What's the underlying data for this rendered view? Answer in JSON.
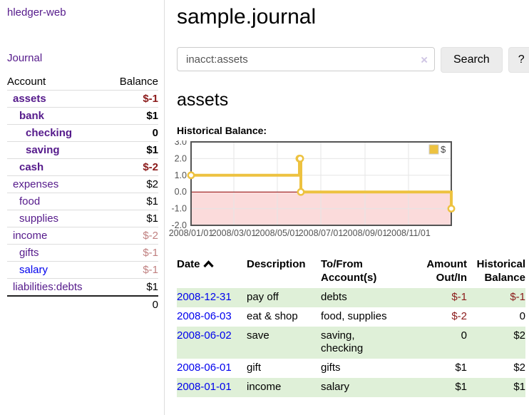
{
  "sidebar": {
    "app_title": "hledger-web",
    "nav": {
      "journal_label": "Journal"
    },
    "accounts_table": {
      "headers": {
        "account": "Account",
        "balance": "Balance"
      },
      "rows": [
        {
          "name": "assets",
          "balance": "$-1",
          "indent": 1,
          "bold": true,
          "balance_style": "negative-strong",
          "link_style": "purple"
        },
        {
          "name": "bank",
          "balance": "$1",
          "indent": 2,
          "bold": true,
          "balance_style": "default",
          "link_style": "purple"
        },
        {
          "name": "checking",
          "balance": "0",
          "indent": 3,
          "bold": true,
          "balance_style": "default",
          "link_style": "purple"
        },
        {
          "name": "saving",
          "balance": "$1",
          "indent": 3,
          "bold": true,
          "balance_style": "default",
          "link_style": "purple"
        },
        {
          "name": "cash",
          "balance": "$-2",
          "indent": 2,
          "bold": true,
          "balance_style": "negative-strong",
          "link_style": "purple"
        },
        {
          "name": "expenses",
          "balance": "$2",
          "indent": 1,
          "bold": false,
          "balance_style": "default",
          "link_style": "purple"
        },
        {
          "name": "food",
          "balance": "$1",
          "indent": 2,
          "bold": false,
          "balance_style": "default",
          "link_style": "purple"
        },
        {
          "name": "supplies",
          "balance": "$1",
          "indent": 2,
          "bold": false,
          "balance_style": "default",
          "link_style": "purple"
        },
        {
          "name": "income",
          "balance": "$-2",
          "indent": 1,
          "bold": false,
          "balance_style": "negative-muted",
          "link_style": "purple"
        },
        {
          "name": "gifts",
          "balance": "$-1",
          "indent": 2,
          "bold": false,
          "balance_style": "negative-muted",
          "link_style": "purple"
        },
        {
          "name": "salary",
          "balance": "$-1",
          "indent": 2,
          "bold": false,
          "balance_style": "negative-muted",
          "link_style": "blue"
        },
        {
          "name": "liabilities:debts",
          "balance": "$1",
          "indent": 1,
          "bold": false,
          "balance_style": "default",
          "link_style": "purple"
        }
      ],
      "total": "0"
    }
  },
  "main": {
    "title": "sample.journal",
    "search": {
      "value": "inacct:assets",
      "clear_icon": "×",
      "button_label": "Search",
      "help_label": "?"
    },
    "account_heading": "assets",
    "chart_label": "Historical Balance:"
  },
  "chart_data": {
    "type": "line",
    "title": "Historical Balance",
    "step": true,
    "series": [
      {
        "name": "$",
        "color": "#EDC240",
        "points": [
          {
            "date": "2008-01-01",
            "day": 0,
            "value": 1
          },
          {
            "date": "2008-06-01",
            "day": 152,
            "value": 2
          },
          {
            "date": "2008-06-02",
            "day": 153,
            "value": 2
          },
          {
            "date": "2008-06-03",
            "day": 154,
            "value": 0
          },
          {
            "date": "2008-12-31",
            "day": 365,
            "value": -1
          }
        ]
      }
    ],
    "x_ticks": [
      {
        "label": "2008/01/01",
        "day": 0
      },
      {
        "label": "2008/03/01",
        "day": 60
      },
      {
        "label": "2008/05/01",
        "day": 121
      },
      {
        "label": "2008/07/01",
        "day": 182
      },
      {
        "label": "2008/09/01",
        "day": 244
      },
      {
        "label": "2008/11/01",
        "day": 305
      }
    ],
    "y_ticks": [
      "3.0",
      "2.0",
      "1.0",
      "0.0",
      "-1.0",
      "-2.0"
    ],
    "ylim": [
      -2,
      3
    ],
    "xlim_days": [
      0,
      365
    ],
    "grid": true,
    "legend_position": "top-right",
    "legend_label": "$",
    "colors": {
      "series": "#EDC240",
      "marker_fill": "#FFFFFF",
      "negative_region": "#FBDBDB",
      "zero_line": "#8B0000",
      "grid": "#E6E6E6",
      "border": "#545454",
      "axis_text": "#545454",
      "legend_box_border": "#CCCCCC"
    }
  },
  "register_table": {
    "headers": {
      "date": "Date",
      "description": "Description",
      "accounts": "To/From Account(s)",
      "amount": "Amount Out/In",
      "balance": "Historical Balance"
    },
    "sort_icon": "chevron-up",
    "rows": [
      {
        "date": "2008-12-31",
        "description": "pay off",
        "accounts": "debts",
        "amount": "$-1",
        "balance": "$-1",
        "amount_style": "negative",
        "balance_style": "negative",
        "shaded": true
      },
      {
        "date": "2008-06-03",
        "description": "eat & shop",
        "accounts": "food, supplies",
        "amount": "$-2",
        "balance": "0",
        "amount_style": "negative",
        "balance_style": "default",
        "shaded": false
      },
      {
        "date": "2008-06-02",
        "description": "save",
        "accounts": "saving, checking",
        "amount": "0",
        "balance": "$2",
        "amount_style": "default",
        "balance_style": "default",
        "shaded": true
      },
      {
        "date": "2008-06-01",
        "description": "gift",
        "accounts": "gifts",
        "amount": "$1",
        "balance": "$2",
        "amount_style": "default",
        "balance_style": "default",
        "shaded": false
      },
      {
        "date": "2008-01-01",
        "description": "income",
        "accounts": "salary",
        "amount": "$1",
        "balance": "$1",
        "amount_style": "default",
        "balance_style": "default",
        "shaded": true
      }
    ]
  },
  "colors": {
    "link_purple": "#551A8B",
    "link_blue": "#0000EE",
    "negative_strong": "#8B1A1A",
    "negative_muted": "#C08080",
    "row_green": "#DFF0D8",
    "accent_gold": "#EDC240"
  }
}
